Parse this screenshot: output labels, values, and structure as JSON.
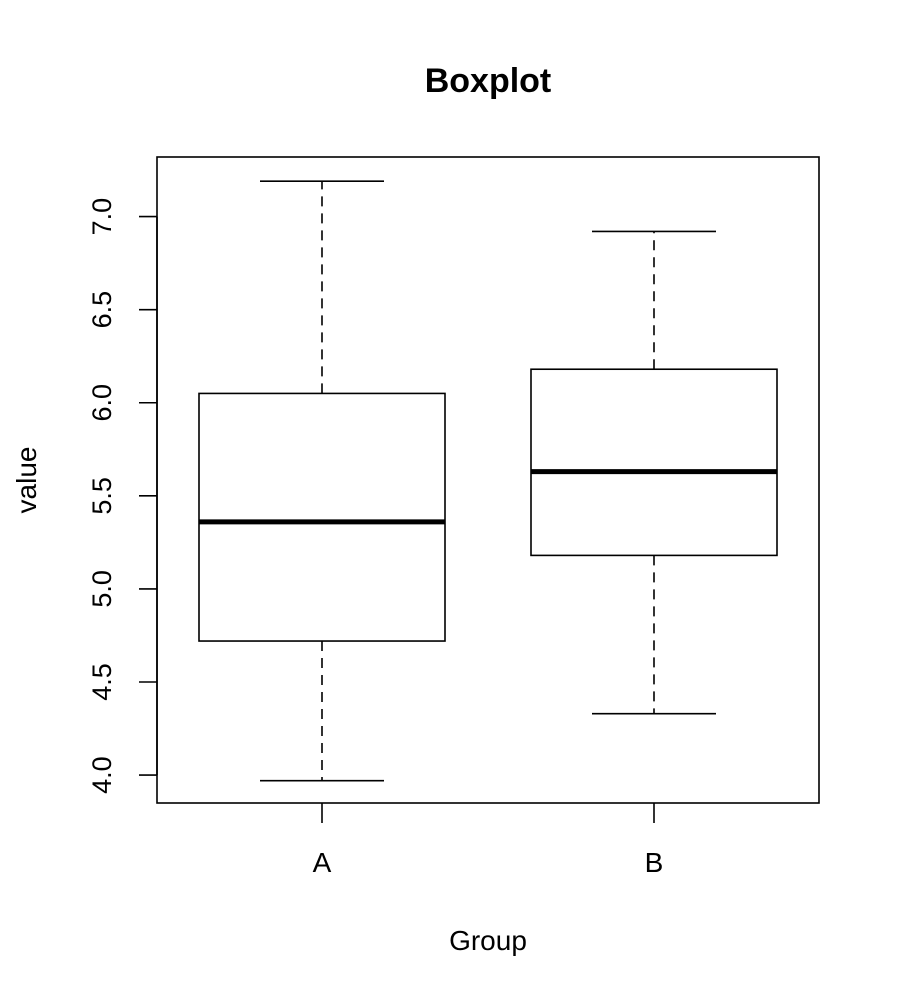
{
  "chart_data": {
    "type": "boxplot",
    "title": "Boxplot",
    "xlabel": "Group",
    "ylabel": "value",
    "categories": [
      "A",
      "B"
    ],
    "ylim": [
      3.85,
      7.32
    ],
    "yticks": [
      4.0,
      4.5,
      5.0,
      5.5,
      6.0,
      6.5,
      7.0
    ],
    "ytick_labels": [
      "4.0",
      "4.5",
      "5.0",
      "5.5",
      "6.0",
      "6.5",
      "7.0"
    ],
    "boxes": [
      {
        "category": "A",
        "whisker_low": 3.97,
        "q1": 4.72,
        "median": 5.36,
        "q3": 6.05,
        "whisker_high": 7.19
      },
      {
        "category": "B",
        "whisker_low": 4.33,
        "q1": 5.18,
        "median": 5.63,
        "q3": 6.18,
        "whisker_high": 6.92
      }
    ],
    "grid": false,
    "legend": "none"
  }
}
